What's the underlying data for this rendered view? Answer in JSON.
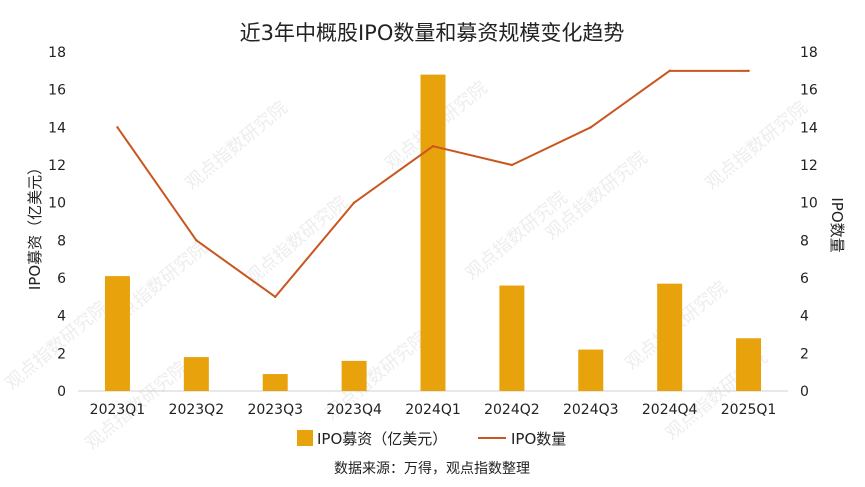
{
  "chart_data": {
    "type": "bar+line",
    "title": "近3年中概股IPO数量和募资规模变化趋势",
    "categories": [
      "2023Q1",
      "2023Q2",
      "2023Q3",
      "2023Q4",
      "2024Q1",
      "2024Q2",
      "2024Q3",
      "2024Q4",
      "2025Q1"
    ],
    "series": [
      {
        "name": "IPO募资（亿美元）",
        "type": "bar",
        "axis": "left",
        "color": "#E8A20C",
        "values": [
          6.1,
          1.8,
          0.9,
          1.6,
          16.8,
          5.6,
          2.2,
          5.7,
          2.8
        ]
      },
      {
        "name": "IPO数量",
        "type": "line",
        "axis": "right",
        "color": "#C8561E",
        "values": [
          14,
          8,
          5,
          10,
          13,
          12,
          14,
          17,
          17
        ]
      }
    ],
    "ylabel_left": "IPO募资（亿美元）",
    "ylabel_right": "IPO数量",
    "ylim_left": [
      0,
      18
    ],
    "ylim_right": [
      0,
      18
    ],
    "yticks": [
      0,
      2,
      4,
      6,
      8,
      10,
      12,
      14,
      16,
      18
    ],
    "grid": false,
    "legend": "bottom"
  },
  "source": "数据来源：万得，观点指数整理",
  "watermark": "观点指数研究院"
}
